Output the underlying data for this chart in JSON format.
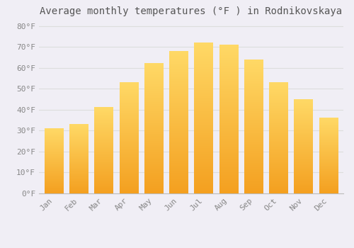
{
  "title": "Average monthly temperatures (°F ) in Rodnikovskaya",
  "months": [
    "Jan",
    "Feb",
    "Mar",
    "Apr",
    "May",
    "Jun",
    "Jul",
    "Aug",
    "Sep",
    "Oct",
    "Nov",
    "Dec"
  ],
  "values": [
    31,
    33,
    41,
    53,
    62,
    68,
    72,
    71,
    64,
    53,
    45,
    36
  ],
  "bar_color_top": "#FFD966",
  "bar_color_bottom": "#F4A020",
  "background_color": "#F0EEF5",
  "grid_color": "#DDDDDD",
  "ytick_labels": [
    "0°F",
    "10°F",
    "20°F",
    "30°F",
    "40°F",
    "50°F",
    "60°F",
    "70°F",
    "80°F"
  ],
  "ytick_values": [
    0,
    10,
    20,
    30,
    40,
    50,
    60,
    70,
    80
  ],
  "ylim": [
    0,
    83
  ],
  "title_fontsize": 10,
  "tick_fontsize": 8,
  "tick_color": "#888888",
  "title_color": "#555555",
  "bar_width": 0.75
}
